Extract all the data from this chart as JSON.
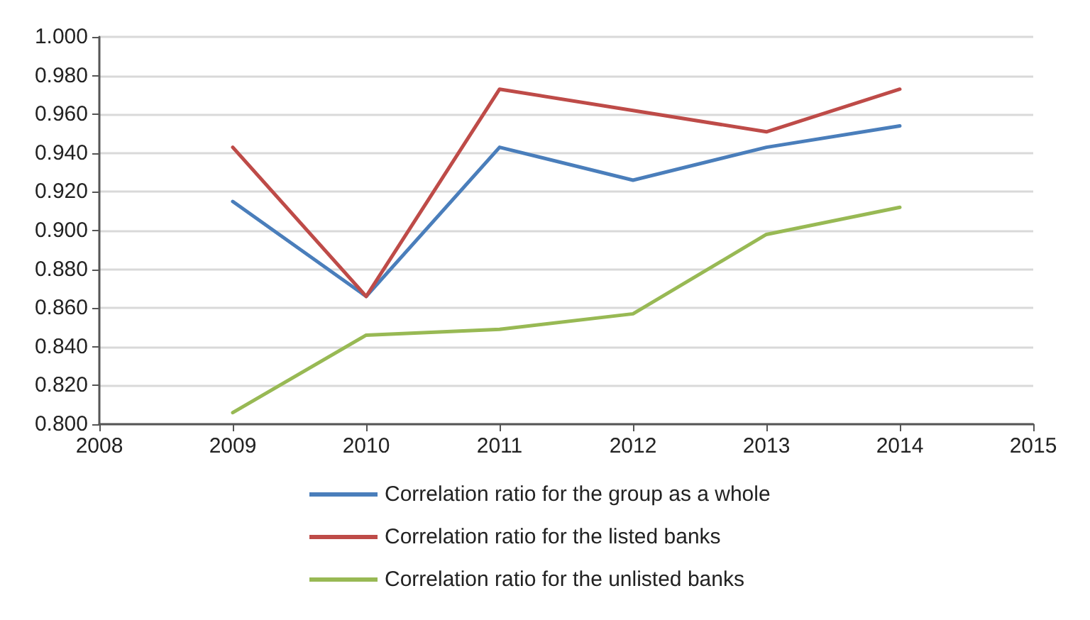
{
  "chart_data": {
    "type": "line",
    "x": [
      2009,
      2010,
      2011,
      2012,
      2013,
      2014
    ],
    "series": [
      {
        "name": "Correlation ratio for the group as a whole",
        "color": "#4a7ebb",
        "values": [
          0.915,
          0.866,
          0.943,
          0.926,
          0.943,
          0.954
        ]
      },
      {
        "name": "Correlation ratio for the listed banks",
        "color": "#be4b48",
        "values": [
          0.943,
          0.866,
          0.973,
          0.962,
          0.951,
          0.973
        ]
      },
      {
        "name": "Correlation ratio for the unlisted banks",
        "color": "#98b954",
        "values": [
          0.806,
          0.846,
          0.849,
          0.857,
          0.898,
          0.912
        ]
      }
    ],
    "xlim": [
      2008,
      2015
    ],
    "xticks": [
      2008,
      2009,
      2010,
      2011,
      2012,
      2013,
      2014,
      2015
    ],
    "ylim": [
      0.8,
      1.0
    ],
    "yticks": [
      {
        "value": 0.8,
        "label": "0.800"
      },
      {
        "value": 0.82,
        "label": "0.820"
      },
      {
        "value": 0.84,
        "label": "0.840"
      },
      {
        "value": 0.86,
        "label": "0.860"
      },
      {
        "value": 0.88,
        "label": "0.880"
      },
      {
        "value": 0.9,
        "label": "0.900"
      },
      {
        "value": 0.92,
        "label": "0.920"
      },
      {
        "value": 0.94,
        "label": "0.940"
      },
      {
        "value": 0.96,
        "label": "0.960"
      },
      {
        "value": 0.98,
        "label": "0.980"
      },
      {
        "value": 1.0,
        "label": "1.000"
      }
    ],
    "grid": "y",
    "legend": "bottom",
    "marker": "none",
    "line_style": "solid"
  }
}
